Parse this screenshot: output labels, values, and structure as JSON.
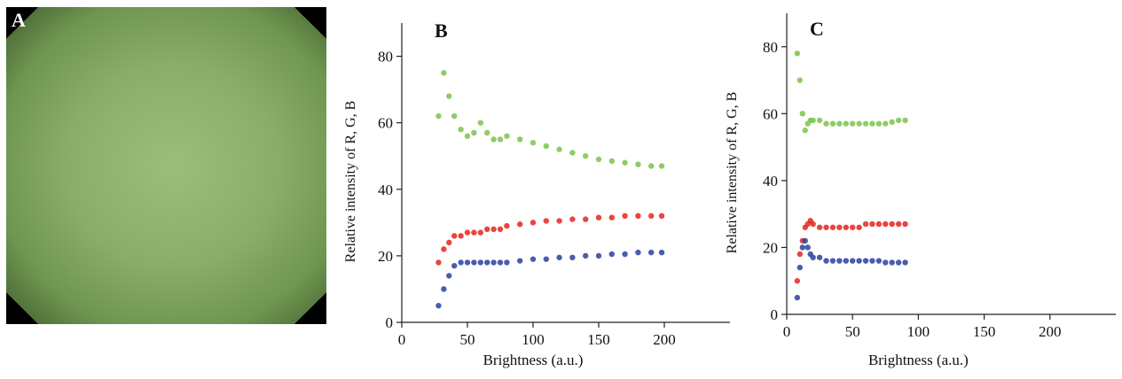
{
  "image_panel": {
    "label": "A"
  },
  "chart_data": [
    {
      "type": "scatter",
      "panel_label": "B",
      "x_label": "Brightness (a.u.)",
      "y_label": "Relative intensity of R, G, B",
      "x": [
        28,
        32,
        36,
        40,
        45,
        50,
        55,
        60,
        65,
        70,
        75,
        80,
        90,
        100,
        110,
        120,
        130,
        140,
        150,
        160,
        170,
        180,
        190,
        198
      ],
      "series": [
        {
          "color": "#7cc34a",
          "values": [
            62,
            75,
            68,
            62,
            58,
            56,
            57,
            60,
            57,
            55,
            55,
            56,
            55,
            54,
            53,
            52,
            51,
            50,
            49,
            48.5,
            48,
            47.5,
            47,
            47
          ]
        },
        {
          "color": "#e8231d",
          "values": [
            18,
            22,
            24,
            26,
            26,
            27,
            27,
            27,
            28,
            28,
            28,
            29,
            29.5,
            30,
            30.5,
            30.5,
            31,
            31,
            31.5,
            31.5,
            32,
            32,
            32,
            32
          ]
        },
        {
          "color": "#2b3f9e",
          "values": [
            5,
            10,
            14,
            17,
            18,
            18,
            18,
            18,
            18,
            18,
            18,
            18,
            18.5,
            19,
            19,
            19.5,
            19.5,
            20,
            20,
            20.5,
            20.5,
            21,
            21,
            21
          ]
        }
      ],
      "xlim": [
        0,
        250
      ],
      "ylim": [
        0,
        90
      ],
      "xticks": [
        0,
        50,
        100,
        150,
        200
      ],
      "yticks": [
        0,
        20,
        40,
        60,
        80
      ]
    },
    {
      "type": "scatter",
      "panel_label": "C",
      "x_label": "Brightness (a.u.)",
      "y_label": "Relative intensity of R, G, B",
      "x": [
        8,
        10,
        12,
        14,
        16,
        18,
        20,
        25,
        30,
        35,
        40,
        45,
        50,
        55,
        60,
        65,
        70,
        75,
        80,
        85,
        90
      ],
      "series": [
        {
          "color": "#7cc34a",
          "values": [
            78,
            70,
            60,
            55,
            57,
            58,
            58,
            58,
            57,
            57,
            57,
            57,
            57,
            57,
            57,
            57,
            57,
            57,
            57.5,
            58,
            58
          ]
        },
        {
          "color": "#e8231d",
          "values": [
            10,
            18,
            22,
            26,
            27,
            28,
            27,
            26,
            26,
            26,
            26,
            26,
            26,
            26,
            27,
            27,
            27,
            27,
            27,
            27,
            27
          ]
        },
        {
          "color": "#2b3f9e",
          "values": [
            5,
            14,
            20,
            22,
            20,
            18,
            17,
            17,
            16,
            16,
            16,
            16,
            16,
            16,
            16,
            16,
            16,
            15.5,
            15.5,
            15.5,
            15.5
          ]
        }
      ],
      "xlim": [
        0,
        250
      ],
      "ylim": [
        0,
        90
      ],
      "xticks": [
        0,
        50,
        100,
        150,
        200
      ],
      "yticks": [
        0,
        20,
        40,
        60,
        80
      ]
    }
  ]
}
